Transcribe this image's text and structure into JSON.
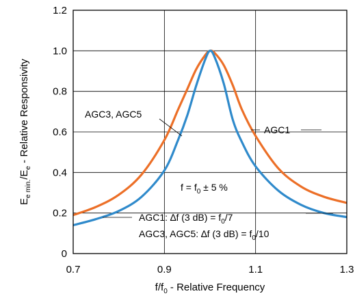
{
  "chart_data": {
    "type": "line",
    "xlabel": {
      "base": "f/f",
      "sub": "0",
      "rest": " - Relative Frequency"
    },
    "ylabel": {
      "base": "E",
      "sub1": "e min.",
      "mid": "/E",
      "sub2": "e",
      "rest": " - Relative Responsivity"
    },
    "xlim": [
      0.7,
      1.3
    ],
    "ylim": [
      0,
      1.2
    ],
    "xticks": [
      0.7,
      0.9,
      1.1,
      1.3
    ],
    "xtick_labels": [
      "0.7",
      "0.9",
      "1.1",
      "1.3"
    ],
    "yticks": [
      0,
      0.2,
      0.4,
      0.6,
      0.8,
      1.0,
      1.2
    ],
    "ytick_labels": [
      "0",
      "0.2",
      "0.4",
      "0.6",
      "0.8",
      "1.0",
      "1.2"
    ],
    "grid": true,
    "series": [
      {
        "name": "AGC1",
        "color": "#ec6f27",
        "x": [
          0.7,
          0.75,
          0.8,
          0.85,
          0.9,
          0.93,
          0.95,
          0.97,
          0.99,
          1.0,
          1.01,
          1.03,
          1.05,
          1.07,
          1.1,
          1.15,
          1.2,
          1.25,
          1.3
        ],
        "y": [
          0.19,
          0.23,
          0.29,
          0.39,
          0.56,
          0.71,
          0.81,
          0.91,
          0.98,
          1.0,
          0.99,
          0.93,
          0.83,
          0.71,
          0.58,
          0.42,
          0.33,
          0.28,
          0.25
        ]
      },
      {
        "name": "AGC3, AGC5",
        "color": "#2f8acb",
        "x": [
          0.7,
          0.75,
          0.8,
          0.85,
          0.9,
          0.93,
          0.95,
          0.97,
          0.99,
          1.0,
          1.01,
          1.03,
          1.05,
          1.07,
          1.1,
          1.15,
          1.2,
          1.25,
          1.3
        ],
        "y": [
          0.14,
          0.17,
          0.21,
          0.28,
          0.41,
          0.56,
          0.68,
          0.83,
          0.96,
          1.0,
          0.97,
          0.84,
          0.66,
          0.55,
          0.43,
          0.31,
          0.24,
          0.2,
          0.18
        ]
      }
    ],
    "labels": {
      "agc1": "AGC1",
      "agc35": "AGC3, AGC5",
      "cond_a": "f = f",
      "cond_sub": "0",
      "cond_b": " ± 5 %",
      "note1_a": "AGC1: ∆f (3 dB) = f",
      "note1_sub": "0",
      "note1_b": "/7",
      "note2_a": "AGC3, AGC5: ∆f (3 dB) = f",
      "note2_sub": "0",
      "note2_b": "/10"
    }
  }
}
